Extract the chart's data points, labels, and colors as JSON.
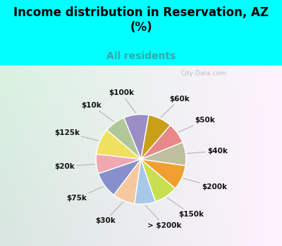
{
  "title": "Income distribution in Reservation, AZ\n(%)",
  "subtitle": "All residents",
  "title_color": "#000000",
  "subtitle_color": "#33aaaa",
  "bg_color": "#00ffff",
  "panel_color_left": "#c8eedc",
  "panel_color_right": "#e8f4f0",
  "labels": [
    "$100k",
    "$10k",
    "$125k",
    "$20k",
    "$75k",
    "$30k",
    "> $200k",
    "$150k",
    "$200k",
    "$40k",
    "$50k",
    "$60k"
  ],
  "sizes": [
    9.0,
    7.5,
    9.5,
    7.0,
    9.5,
    8.0,
    7.5,
    8.5,
    9.0,
    8.5,
    7.5,
    8.5
  ],
  "colors": [
    "#9b8ec4",
    "#b0c898",
    "#f0e060",
    "#f0a8b0",
    "#8890cc",
    "#f5c8a0",
    "#a8c8e8",
    "#c8e050",
    "#f0a030",
    "#c0c0a0",
    "#e88888",
    "#c8a018"
  ],
  "wedge_edge_color": "#ffffff",
  "startangle": 80,
  "watermark": "City-Data.com"
}
